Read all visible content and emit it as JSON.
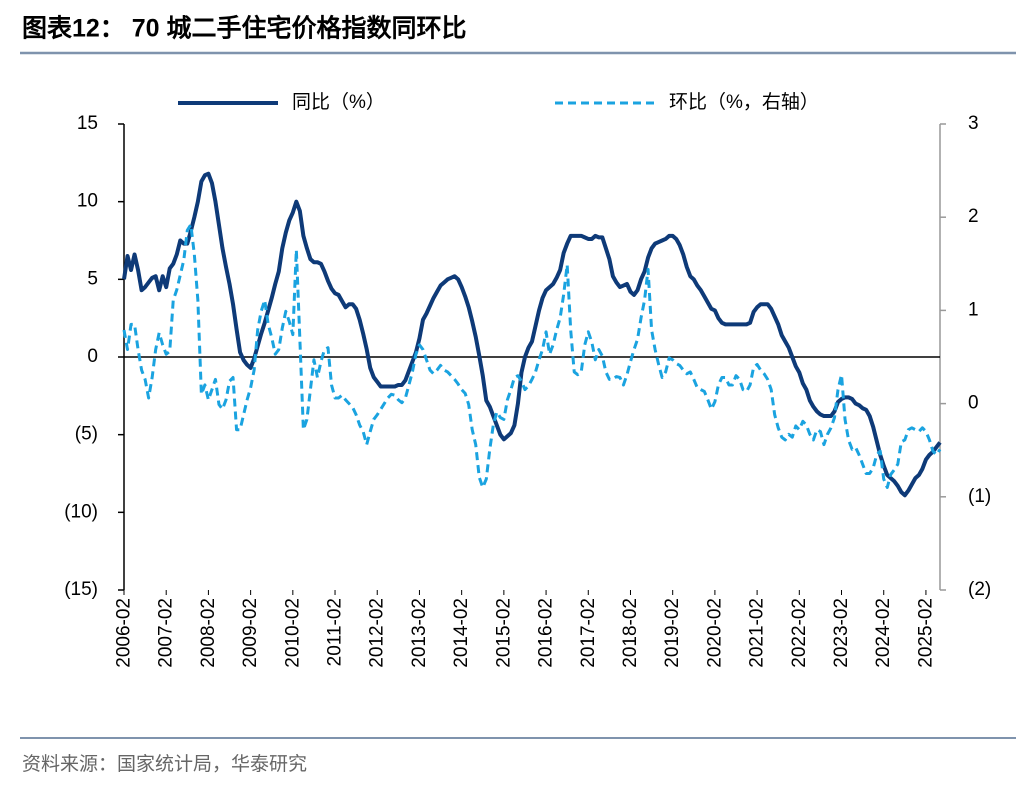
{
  "chart_data": {
    "type": "line",
    "title": "图表12：  70 城二手住宅价格指数同环比",
    "source": "资料来源：国家统计局，华泰研究",
    "categories": [
      "2006-02",
      null,
      null,
      null,
      null,
      null,
      null,
      null,
      null,
      null,
      null,
      null,
      "2007-02",
      null,
      null,
      null,
      null,
      null,
      null,
      null,
      null,
      null,
      null,
      null,
      "2008-02",
      null,
      null,
      null,
      null,
      null,
      null,
      null,
      null,
      null,
      null,
      null,
      "2009-02",
      null,
      null,
      null,
      null,
      null,
      null,
      null,
      null,
      null,
      null,
      null,
      "2010-02",
      null,
      null,
      null,
      null,
      null,
      null,
      null,
      null,
      null,
      null,
      null,
      "2011-02",
      null,
      null,
      null,
      null,
      null,
      null,
      null,
      null,
      null,
      null,
      null,
      "2012-02",
      null,
      null,
      null,
      null,
      null,
      null,
      null,
      null,
      null,
      null,
      null,
      "2013-02",
      null,
      null,
      null,
      null,
      null,
      null,
      null,
      null,
      null,
      null,
      null,
      "2014-02",
      null,
      null,
      null,
      null,
      null,
      null,
      null,
      null,
      null,
      null,
      null,
      "2015-02",
      null,
      null,
      null,
      null,
      null,
      null,
      null,
      null,
      null,
      null,
      null,
      "2016-02",
      null,
      null,
      null,
      null,
      null,
      null,
      null,
      null,
      null,
      null,
      null,
      "2017-02",
      null,
      null,
      null,
      null,
      null,
      null,
      null,
      null,
      null,
      null,
      null,
      "2018-02",
      null,
      null,
      null,
      null,
      null,
      null,
      null,
      null,
      null,
      null,
      null,
      "2019-02",
      null,
      null,
      null,
      null,
      null,
      null,
      null,
      null,
      null,
      null,
      null,
      "2020-02",
      null,
      null,
      null,
      null,
      null,
      null,
      null,
      null,
      null,
      null,
      null,
      "2021-02",
      null,
      null,
      null,
      null,
      null,
      null,
      null,
      null,
      null,
      null,
      null,
      "2022-02",
      null,
      null,
      null,
      null,
      null,
      null,
      null,
      null,
      null,
      null,
      null,
      "2023-02",
      null,
      null,
      null,
      null,
      null,
      null,
      null,
      null,
      null,
      null,
      null,
      "2024-02",
      null,
      null,
      null,
      null,
      null,
      null,
      null,
      null,
      null,
      null,
      null,
      "2025-02",
      null,
      null,
      null,
      null
    ],
    "series": [
      {
        "name": "同比（%）",
        "color": "#0e3a78",
        "line_style": "solid",
        "axis": "y",
        "values": [
          5.0,
          6.5,
          5.6,
          6.6,
          5.6,
          4.3,
          4.5,
          4.8,
          5.1,
          5.2,
          4.3,
          5.2,
          4.5,
          5.7,
          6.0,
          6.6,
          7.5,
          7.3,
          7.3,
          8.1,
          9.0,
          10.0,
          11.3,
          11.7,
          11.8,
          11.2,
          10.0,
          8.5,
          7.0,
          5.8,
          4.7,
          3.4,
          1.8,
          0.3,
          -0.2,
          -0.5,
          -0.7,
          -0.1,
          0.7,
          1.5,
          2.2,
          3.0,
          3.8,
          4.7,
          5.5,
          7.0,
          8.0,
          8.8,
          9.3,
          10.0,
          9.4,
          7.8,
          7.0,
          6.3,
          6.1,
          6.1,
          6.0,
          5.5,
          4.9,
          4.4,
          4.1,
          4.0,
          3.6,
          3.2,
          3.4,
          3.4,
          3.1,
          2.4,
          1.5,
          0.5,
          -0.7,
          -1.3,
          -1.6,
          -1.9,
          -1.9,
          -1.9,
          -1.9,
          -1.9,
          -1.8,
          -1.8,
          -1.5,
          -0.9,
          -0.3,
          0.3,
          1.2,
          2.4,
          2.8,
          3.3,
          3.8,
          4.2,
          4.6,
          4.8,
          5.0,
          5.1,
          5.2,
          5.0,
          4.5,
          3.9,
          3.2,
          2.3,
          1.3,
          0.1,
          -1.2,
          -2.8,
          -3.2,
          -3.8,
          -4.4,
          -5.0,
          -5.3,
          -5.1,
          -4.9,
          -4.4,
          -3.0,
          -1.0,
          0.0,
          0.6,
          1.0,
          2.0,
          3.0,
          3.8,
          4.3,
          4.5,
          4.7,
          5.1,
          5.6,
          6.7,
          7.3,
          7.8,
          7.8,
          7.8,
          7.8,
          7.7,
          7.6,
          7.6,
          7.8,
          7.7,
          7.7,
          7.0,
          6.3,
          5.2,
          4.8,
          4.5,
          4.6,
          4.7,
          4.2,
          4.0,
          4.3,
          5.0,
          5.5,
          6.4,
          7.0,
          7.3,
          7.4,
          7.5,
          7.6,
          7.8,
          7.8,
          7.6,
          7.2,
          6.6,
          5.8,
          5.2,
          5.0,
          4.6,
          4.3,
          3.9,
          3.5,
          3.1,
          3.0,
          2.5,
          2.2,
          2.1,
          2.1,
          2.1,
          2.1,
          2.1,
          2.1,
          2.1,
          2.2,
          2.9,
          3.2,
          3.4,
          3.4,
          3.4,
          3.1,
          2.6,
          2.1,
          1.4,
          1.0,
          0.6,
          0.0,
          -0.6,
          -1.0,
          -1.7,
          -2.1,
          -2.8,
          -3.2,
          -3.5,
          -3.7,
          -3.8,
          -3.8,
          -3.8,
          -3.5,
          -2.9,
          -2.7,
          -2.6,
          -2.6,
          -2.7,
          -3.0,
          -3.1,
          -3.3,
          -3.4,
          -3.8,
          -4.5,
          -5.4,
          -6.3,
          -7.0,
          -7.6,
          -7.8,
          -8.0,
          -8.3,
          -8.7,
          -8.9,
          -8.6,
          -8.2,
          -7.8,
          -7.6,
          -7.2,
          -6.6,
          -6.3,
          -6.1,
          -5.8,
          -5.5
        ]
      },
      {
        "name": "环比（%，右轴）",
        "color": "#1aa3e0",
        "line_style": "dashed",
        "axis": "y2",
        "values": [
          0.79,
          0.58,
          0.85,
          0.85,
          0.58,
          0.36,
          0.26,
          0.06,
          0.28,
          0.58,
          0.76,
          0.63,
          0.53,
          0.56,
          1.11,
          1.22,
          1.38,
          1.54,
          1.86,
          1.92,
          1.6,
          1.11,
          0.1,
          0.2,
          0.04,
          0.15,
          0.26,
          -0.01,
          -0.06,
          0.04,
          0.24,
          0.28,
          -0.28,
          -0.28,
          -0.12,
          0.04,
          0.17,
          0.36,
          0.79,
          0.99,
          1.11,
          0.85,
          0.71,
          0.53,
          0.58,
          0.81,
          0.99,
          0.88,
          0.74,
          1.65,
          0.69,
          -0.28,
          -0.17,
          0.15,
          0.47,
          0.28,
          0.45,
          0.58,
          0.6,
          0.2,
          0.06,
          0.06,
          0.09,
          0.04,
          0,
          -0.04,
          -0.12,
          -0.23,
          -0.3,
          -0.44,
          -0.3,
          -0.17,
          -0.12,
          -0.06,
          0,
          0.06,
          0.1,
          0.09,
          0.04,
          0.01,
          0.06,
          0.2,
          0.34,
          0.53,
          0.63,
          0.58,
          0.47,
          0.36,
          0.32,
          0.36,
          0.41,
          0.36,
          0.34,
          0.3,
          0.26,
          0.21,
          0.15,
          0.11,
          -0.01,
          -0.28,
          -0.44,
          -0.79,
          -0.9,
          -0.81,
          -0.49,
          -0.23,
          -0.09,
          -0.15,
          -0.17,
          0.04,
          0.15,
          0.28,
          0.3,
          0.24,
          0.15,
          0.19,
          0.26,
          0.34,
          0.47,
          0.58,
          0.77,
          0.53,
          0.63,
          0.79,
          0.92,
          1.17,
          1.49,
          0.79,
          0.34,
          0.31,
          0.34,
          0.63,
          0.77,
          0.66,
          0.47,
          0.58,
          0.51,
          0.34,
          0.26,
          0.26,
          0.29,
          0.28,
          0.2,
          0.31,
          0.45,
          0.58,
          0.69,
          0.92,
          1.11,
          1.44,
          0.79,
          0.58,
          0.42,
          0.28,
          0.34,
          0.49,
          0.47,
          0.43,
          0.41,
          0.36,
          0.32,
          0.34,
          0.26,
          0.17,
          0.15,
          0.13,
          0.04,
          -0.06,
          0.02,
          0.2,
          0.28,
          0.28,
          0.2,
          0.2,
          0.3,
          0.26,
          0.15,
          0.13,
          0.2,
          0.39,
          0.42,
          0.36,
          0.32,
          0.26,
          0.15,
          -0.12,
          -0.26,
          -0.36,
          -0.39,
          -0.33,
          -0.36,
          -0.24,
          -0.28,
          -0.19,
          -0.23,
          -0.33,
          -0.39,
          -0.28,
          -0.3,
          -0.44,
          -0.33,
          -0.26,
          -0.15,
          0.15,
          0.31,
          -0.17,
          -0.39,
          -0.49,
          -0.47,
          -0.55,
          -0.65,
          -0.75,
          -0.75,
          -0.69,
          -0.55,
          -0.51,
          -0.81,
          -0.9,
          -0.76,
          -0.71,
          -0.65,
          -0.41,
          -0.39,
          -0.28,
          -0.26,
          -0.28,
          -0.3,
          -0.26,
          -0.3,
          -0.39,
          -0.51,
          -0.55,
          -0.49
        ]
      }
    ],
    "ylim": [
      -15,
      15
    ],
    "yticks": [
      15,
      10,
      5,
      0,
      {
        "value": -5,
        "label": "(5)"
      },
      {
        "value": -10,
        "label": "(10)"
      },
      {
        "value": -15,
        "label": "(15)"
      }
    ],
    "y2lim": [
      -2,
      3
    ],
    "y2ticks": [
      3,
      2,
      1,
      0,
      {
        "value": -1,
        "label": "(1)"
      },
      {
        "value": -2,
        "label": "(2)"
      }
    ],
    "legend": "top"
  }
}
